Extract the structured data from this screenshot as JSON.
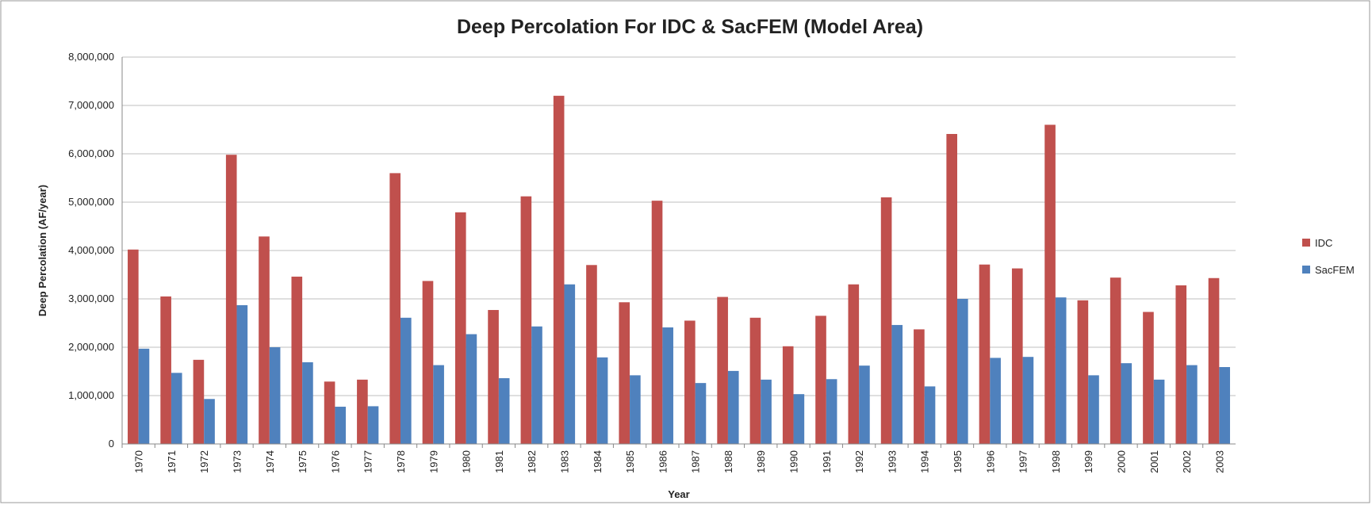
{
  "chart_data": {
    "type": "bar",
    "title": "Deep Percolation For IDC & SacFEM (Model Area)",
    "x_label": "Year",
    "y_label": "Deep Percolation (AF/year)",
    "categories": [
      "1970",
      "1971",
      "1972",
      "1973",
      "1974",
      "1975",
      "1976",
      "1977",
      "1978",
      "1979",
      "1980",
      "1981",
      "1982",
      "1983",
      "1984",
      "1985",
      "1986",
      "1987",
      "1988",
      "1989",
      "1990",
      "1991",
      "1992",
      "1993",
      "1994",
      "1995",
      "1996",
      "1997",
      "1998",
      "1999",
      "2000",
      "2001",
      "2002",
      "2003"
    ],
    "series": [
      {
        "name": "IDC",
        "color": "#c0504d",
        "values": [
          4020000,
          3050000,
          1740000,
          5980000,
          4290000,
          3460000,
          1290000,
          1330000,
          5600000,
          3370000,
          4790000,
          2770000,
          5120000,
          7200000,
          3700000,
          2930000,
          5030000,
          2550000,
          3040000,
          2610000,
          2020000,
          2650000,
          3300000,
          5100000,
          2370000,
          6410000,
          3710000,
          3630000,
          6600000,
          2970000,
          3440000,
          2730000,
          3280000,
          3430000
        ]
      },
      {
        "name": "SacFEM",
        "color": "#4f81bd",
        "values": [
          1970000,
          1470000,
          930000,
          2870000,
          2000000,
          1690000,
          770000,
          780000,
          2610000,
          1630000,
          2270000,
          1360000,
          2430000,
          3300000,
          1790000,
          1420000,
          2410000,
          1260000,
          1510000,
          1330000,
          1030000,
          1340000,
          1620000,
          2460000,
          1190000,
          3000000,
          1780000,
          1800000,
          3030000,
          1420000,
          1670000,
          1330000,
          1630000,
          1590000
        ]
      }
    ],
    "ylim": [
      0,
      8000000
    ],
    "yticks": [
      0,
      {
        "value": 1000000,
        "label": "1,000,000"
      },
      {
        "value": 2000000,
        "label": "2,000,000"
      },
      {
        "value": 3000000,
        "label": "3,000,000"
      },
      {
        "value": 4000000,
        "label": "4,000,000"
      },
      {
        "value": 5000000,
        "label": "5,000,000"
      },
      {
        "value": 6000000,
        "label": "6,000,000"
      },
      {
        "value": 7000000,
        "label": "7,000,000"
      },
      {
        "value": 8000000,
        "label": "8,000,000"
      }
    ],
    "grid": true,
    "legend": "right"
  }
}
